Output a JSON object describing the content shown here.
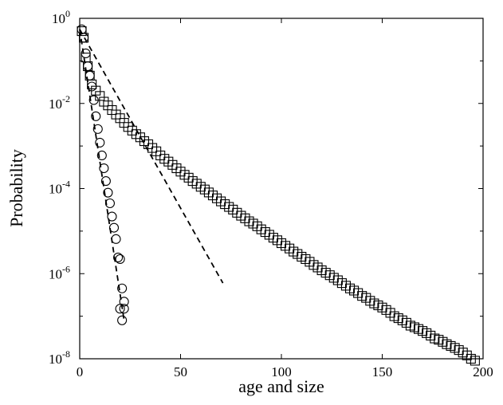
{
  "chart_data": {
    "type": "scatter",
    "title": "",
    "xlabel": "age and size",
    "ylabel": "Probability",
    "xlim": [
      0,
      200
    ],
    "ylim": [
      1e-08,
      1
    ],
    "yscale": "log",
    "grid": false,
    "legend": "none",
    "x_ticks": [
      "0",
      "50",
      "100",
      "150",
      "200"
    ],
    "x_tick_values": [
      0,
      50,
      100,
      150,
      200
    ],
    "y_ticks": [
      {
        "base": "10",
        "exp": "0",
        "value": 1
      },
      {
        "base": "10",
        "exp": "-2",
        "value": 0.01
      },
      {
        "base": "10",
        "exp": "-4",
        "value": 0.0001
      },
      {
        "base": "10",
        "exp": "-6",
        "value": 1e-06
      },
      {
        "base": "10",
        "exp": "-8",
        "value": 1e-08
      }
    ],
    "series": [
      {
        "marker": "circle",
        "color": "#000000",
        "x": [
          1,
          2,
          3,
          4,
          5,
          6,
          7,
          8,
          9,
          10,
          11,
          12,
          13,
          14,
          15,
          16,
          17,
          18,
          19,
          20,
          21,
          22
        ],
        "y": [
          0.55,
          0.35,
          0.15,
          0.075,
          0.045,
          0.025,
          0.012,
          0.005,
          0.0025,
          0.0012,
          0.0006,
          0.0003,
          0.00015,
          8e-05,
          4.5e-05,
          2.2e-05,
          1.2e-05,
          6.5e-06,
          2.4e-06,
          2.2e-06,
          4.5e-07,
          2.2e-07
        ]
      },
      {
        "marker": "circle",
        "color": "#000000",
        "x": [
          20,
          21,
          22
        ],
        "y": [
          1.5e-07,
          8e-08,
          1.5e-07
        ]
      },
      {
        "marker": "square",
        "color": "#000000",
        "x": [
          1,
          2,
          3,
          4,
          5,
          6,
          8,
          10,
          12,
          14,
          16,
          18,
          20,
          22,
          24,
          26,
          28,
          30,
          32,
          34,
          36,
          38,
          40,
          42,
          44,
          46,
          48,
          50,
          52,
          54,
          56,
          58,
          60,
          62,
          64,
          66,
          68,
          70,
          72,
          74,
          76,
          78,
          80,
          82,
          84,
          86,
          88,
          90,
          92,
          94,
          96,
          98,
          100,
          102,
          104,
          106,
          108,
          110,
          112,
          114,
          116,
          118,
          120,
          122,
          124,
          126,
          128,
          130,
          132,
          134,
          136,
          138,
          140,
          142,
          144,
          146,
          148,
          150,
          152,
          154,
          156,
          158,
          160,
          162,
          164,
          166,
          168,
          170,
          172,
          174,
          176,
          178,
          180,
          182,
          184,
          186,
          188,
          190,
          192,
          194,
          196
        ],
        "y": [
          0.5,
          0.35,
          0.12,
          0.075,
          0.045,
          0.028,
          0.02,
          0.015,
          0.011,
          0.009,
          0.007,
          0.0055,
          0.0045,
          0.0035,
          0.0028,
          0.0023,
          0.0019,
          0.0016,
          0.0013,
          0.0011,
          0.0009,
          0.00075,
          0.0006,
          0.0005,
          0.00043,
          0.00036,
          0.0003,
          0.00025,
          0.00021,
          0.00018,
          0.00015,
          0.00013,
          0.00011,
          9.5e-05,
          8.1e-05,
          6.9e-05,
          5.9e-05,
          5e-05,
          4.3e-05,
          3.7e-05,
          3.2e-05,
          2.7e-05,
          2.3e-05,
          2e-05,
          1.7e-05,
          1.5e-05,
          1.3e-05,
          1.1e-05,
          9.5e-06,
          8.2e-06,
          7e-06,
          6.1e-06,
          5.2e-06,
          4.5e-06,
          3.9e-06,
          3.3e-06,
          2.9e-06,
          2.5e-06,
          2.2e-06,
          1.9e-06,
          1.6e-06,
          1.4e-06,
          1.2e-06,
          1.05e-06,
          9.2e-07,
          8e-07,
          7e-07,
          6e-07,
          5.2e-07,
          4.5e-07,
          4e-07,
          3.5e-07,
          3e-07,
          2.7e-07,
          2.3e-07,
          2e-07,
          1.8e-07,
          1.6e-07,
          1.4e-07,
          1.2e-07,
          1e-07,
          9e-08,
          8e-08,
          7e-08,
          6e-08,
          5.5e-08,
          5e-08,
          4.5e-08,
          4e-08,
          3.5e-08,
          3e-08,
          2.8e-08,
          2.5e-08,
          2.2e-08,
          2e-08,
          1.8e-08,
          1.6e-08,
          1.4e-08,
          1.2e-08,
          1e-08,
          9e-09
        ]
      }
    ],
    "lines": [
      {
        "style": "dashed",
        "color": "#000000",
        "x": [
          0,
          22
        ],
        "y": [
          0.55,
          8e-08
        ]
      },
      {
        "style": "dashed",
        "color": "#000000",
        "x": [
          0,
          71
        ],
        "y": [
          0.55,
          6e-07
        ]
      }
    ]
  }
}
